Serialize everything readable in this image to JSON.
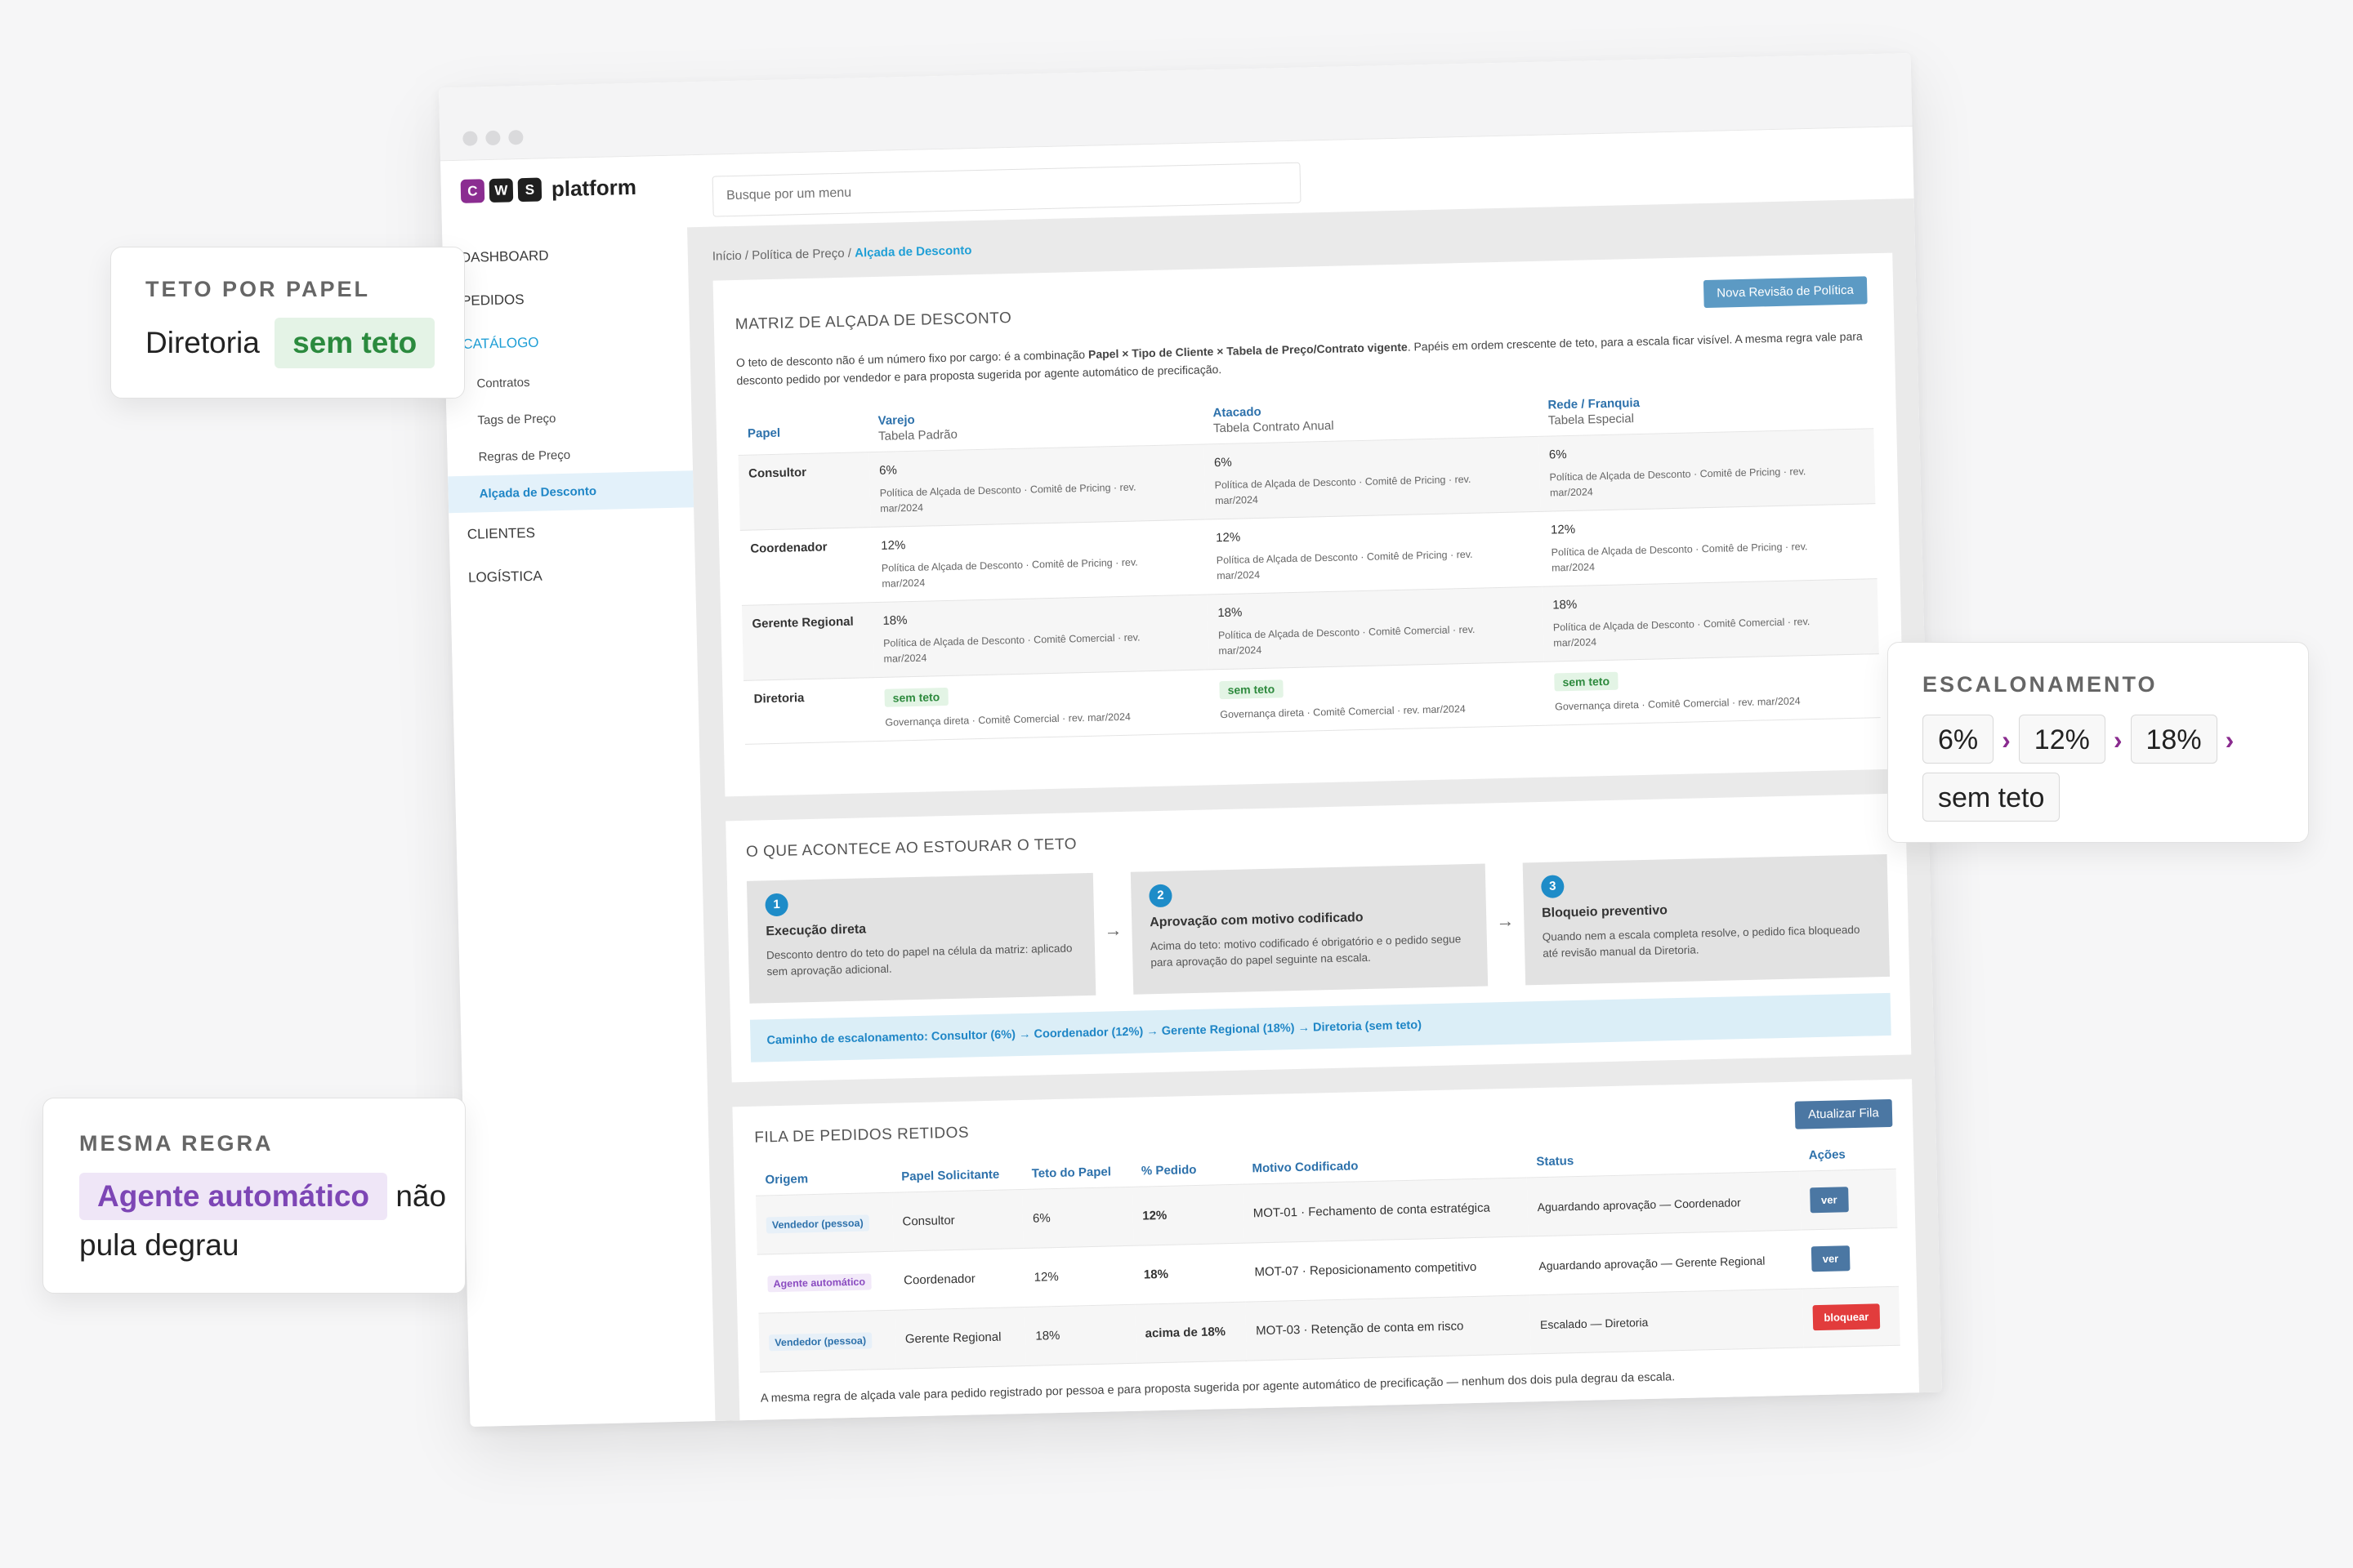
{
  "window": {
    "logo": {
      "letters": [
        "C",
        "W",
        "S"
      ],
      "colors": [
        "#8b2d91",
        "#1f1f1f",
        "#1f1f1f"
      ],
      "text": "platform"
    },
    "search": {
      "placeholder": "Busque por um menu"
    },
    "sidebar": {
      "items": [
        {
          "label": "DASHBOARD"
        },
        {
          "label": "PEDIDOS"
        },
        {
          "label": "CATÁLOGO"
        },
        {
          "label": "CLIENTES"
        },
        {
          "label": "LOGÍSTICA"
        }
      ],
      "catalog_sub": [
        {
          "label": "Contratos"
        },
        {
          "label": "Tags de Preço"
        },
        {
          "label": "Regras de Preço"
        },
        {
          "label": "Alçada de Desconto"
        }
      ]
    },
    "breadcrumb": {
      "home": "Início",
      "section": "Política de Preço",
      "current": "Alçada de Desconto",
      "separator": " / "
    },
    "matrix": {
      "title": "MATRIZ DE ALÇADA DE DESCONTO",
      "button": "Nova Revisão de Política",
      "intro_pre": "O teto de desconto não é um número fixo por cargo: é a combinação ",
      "intro_bold": "Papel × Tipo de Cliente × Tabela de Preço/Contrato vigente",
      "intro_post": ". Papéis em ordem crescente de teto, para a escala ficar visível. A mesma regra vale para desconto pedido por vendedor e para proposta sugerida por agente automático de precificação.",
      "col_role": "Papel",
      "columns": [
        {
          "name": "Varejo",
          "table": "Tabela Padrão"
        },
        {
          "name": "Atacado",
          "table": "Tabela Contrato Anual"
        },
        {
          "name": "Rede / Franquia",
          "table": "Tabela Especial"
        }
      ],
      "rows": [
        {
          "role": "Consultor",
          "cells": [
            {
              "value": "6%",
              "source": "Política de Alçada de Desconto · Comitê de Pricing · rev. mar/2024"
            },
            {
              "value": "6%",
              "source": "Política de Alçada de Desconto · Comitê de Pricing · rev. mar/2024"
            },
            {
              "value": "6%",
              "source": "Política de Alçada de Desconto · Comitê de Pricing · rev. mar/2024"
            }
          ]
        },
        {
          "role": "Coordenador",
          "cells": [
            {
              "value": "12%",
              "source": "Política de Alçada de Desconto · Comitê de Pricing · rev. mar/2024"
            },
            {
              "value": "12%",
              "source": "Política de Alçada de Desconto · Comitê de Pricing · rev. mar/2024"
            },
            {
              "value": "12%",
              "source": "Política de Alçada de Desconto · Comitê de Pricing · rev. mar/2024"
            }
          ]
        },
        {
          "role": "Gerente Regional",
          "cells": [
            {
              "value": "18%",
              "source": "Política de Alçada de Desconto · Comitê Comercial · rev. mar/2024"
            },
            {
              "value": "18%",
              "source": "Política de Alçada de Desconto · Comitê Comercial · rev. mar/2024"
            },
            {
              "value": "18%",
              "source": "Política de Alçada de Desconto · Comitê Comercial · rev. mar/2024"
            }
          ]
        },
        {
          "role": "Diretoria",
          "cells": [
            {
              "value": "sem teto",
              "source": "Governança direta · Comitê Comercial · rev. mar/2024"
            },
            {
              "value": "sem teto",
              "source": "Governança direta · Comitê Comercial · rev. mar/2024"
            },
            {
              "value": "sem teto",
              "source": "Governança direta · Comitê Comercial · rev. mar/2024"
            }
          ]
        }
      ]
    },
    "flow": {
      "title": "O QUE ACONTECE AO ESTOURAR O TETO",
      "steps": [
        {
          "num": "1",
          "title": "Execução direta",
          "desc": "Desconto dentro do teto do papel na célula da matriz: aplicado sem aprovação adicional."
        },
        {
          "num": "2",
          "title": "Aprovação com motivo codificado",
          "desc": "Acima do teto: motivo codificado é obrigatório e o pedido segue para aprovação do papel seguinte na escala."
        },
        {
          "num": "3",
          "title": "Bloqueio preventivo",
          "desc": "Quando nem a escala completa resolve, o pedido fica bloqueado até revisão manual da Diretoria."
        }
      ],
      "arrow": "→",
      "path": "Caminho de escalonamento: Consultor (6%) → Coordenador (12%) → Gerente Regional (18%) → Diretoria (sem teto)"
    },
    "queue": {
      "title": "FILA DE PEDIDOS RETIDOS",
      "button": "Atualizar Fila",
      "headers": [
        "Origem",
        "Papel Solicitante",
        "Teto do Papel",
        "% Pedido",
        "Motivo Codificado",
        "Status",
        "Ações"
      ],
      "rows": [
        {
          "origin": "Vendedor (pessoa)",
          "origin_kind": "person",
          "role": "Consultor",
          "ceiling": "6%",
          "requested": "12%",
          "reason": "MOT-01 · Fechamento de conta estratégica",
          "status": "Aguardando aprovação — Coordenador",
          "action": "ver",
          "action_kind": "view"
        },
        {
          "origin": "Agente automático",
          "origin_kind": "agent",
          "role": "Coordenador",
          "ceiling": "12%",
          "requested": "18%",
          "reason": "MOT-07 · Reposicionamento competitivo",
          "status": "Aguardando aprovação — Gerente Regional",
          "action": "ver",
          "action_kind": "view"
        },
        {
          "origin": "Vendedor (pessoa)",
          "origin_kind": "person",
          "role": "Gerente Regional",
          "ceiling": "18%",
          "requested": "acima de 18%",
          "reason": "MOT-03 · Retenção de conta em risco",
          "status": "Escalado — Diretoria",
          "action": "bloquear",
          "action_kind": "block"
        }
      ],
      "note": "A mesma regra de alçada vale para pedido registrado por pessoa e para proposta sugerida por agente automático de precificação — nenhum dos dois pula degrau da escala."
    }
  },
  "callouts": {
    "ceiling": {
      "title": "TETO POR PAPEL",
      "role": "Diretoria",
      "value": "sem teto"
    },
    "same_rule": {
      "title": "MESMA REGRA",
      "agent": "Agente automático",
      "rest": " não pula degrau"
    },
    "escalation": {
      "title": "ESCALONAMENTO",
      "steps": [
        "6%",
        "12%",
        "18%",
        "sem teto"
      ],
      "separator": "›"
    }
  },
  "colors": {
    "accent_blue": "#1f9fd6",
    "header_blue": "#2d71ab",
    "success_green": "#2e8a3e",
    "agent_purple": "#7d46b5",
    "danger_red": "#e23c3c",
    "brand_magenta": "#8b2d91"
  }
}
